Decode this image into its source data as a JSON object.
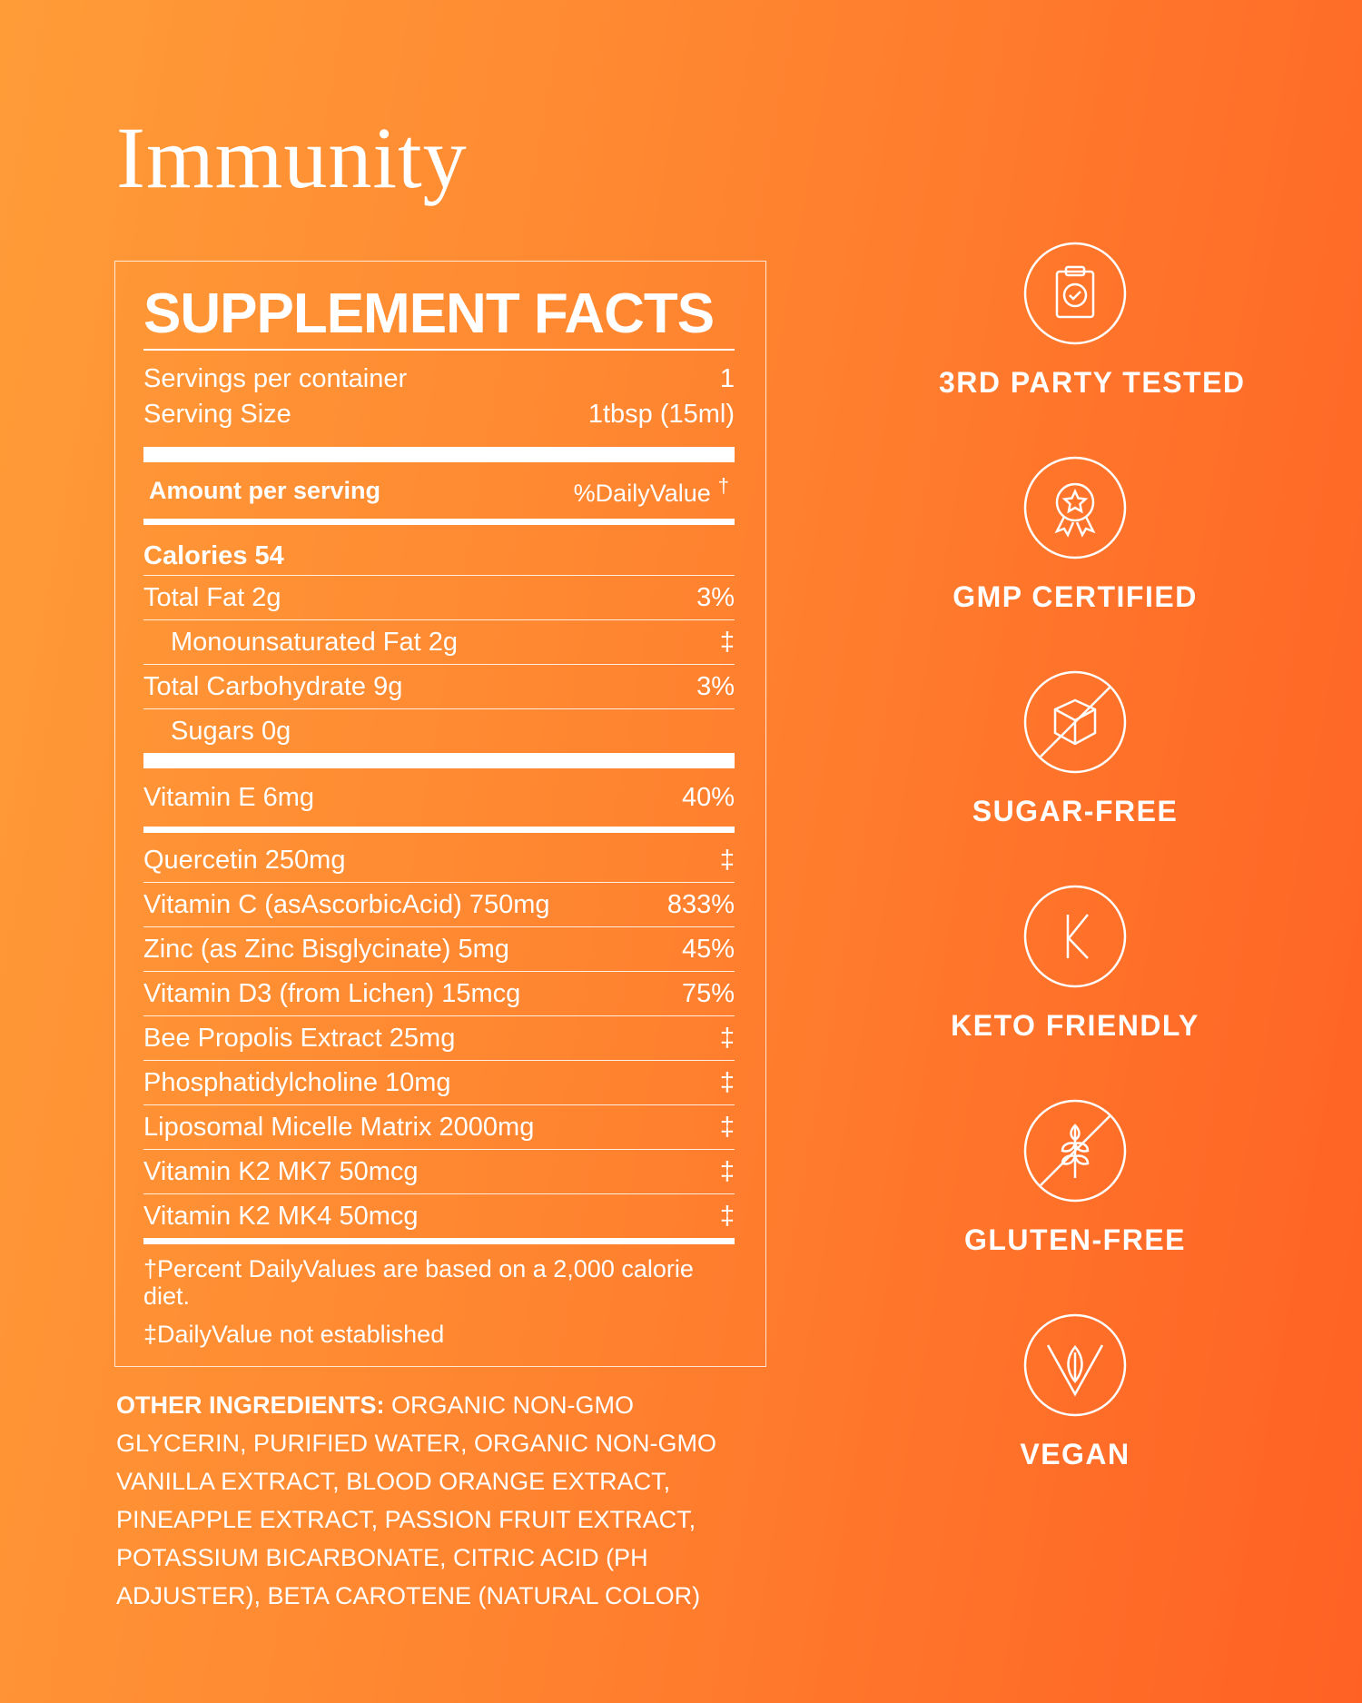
{
  "title": "Immunity",
  "facts": {
    "heading": "SUPPLEMENT FACTS",
    "servings": [
      {
        "label": "Servings per container",
        "value": "1"
      },
      {
        "label": "Serving Size",
        "value": "1tbsp (15ml)"
      }
    ],
    "amount_header": {
      "label": "Amount per serving",
      "value": "%DailyValue",
      "mark": "†"
    },
    "calories": "Calories 54",
    "nutrients": [
      {
        "label": "Total Fat 2g",
        "dv": "3%"
      },
      {
        "label": "Monounsaturated Fat 2g",
        "dv": "‡",
        "indent": true
      },
      {
        "label": "Total Carbohydrate 9g",
        "dv": "3%"
      },
      {
        "label": "Sugars 0g",
        "indent": true
      }
    ],
    "vitamins": [
      {
        "label": "Vitamin E 6mg",
        "dv": "40%"
      }
    ],
    "ingredients": [
      {
        "label": "Quercetin 250mg",
        "dv": "‡"
      },
      {
        "label": "Vitamin C (asAscorbicAcid) 750mg",
        "dv": "833%"
      },
      {
        "label": "Zinc (as Zinc Bisglycinate) 5mg",
        "dv": "45%"
      },
      {
        "label": "Vitamin D3 (from Lichen) 15mcg",
        "dv": "75%"
      },
      {
        "label": "Bee Propolis Extract 25mg",
        "dv": "‡"
      },
      {
        "label": "Phosphatidylcholine 10mg",
        "dv": "‡"
      },
      {
        "label": "Liposomal Micelle Matrix 2000mg",
        "dv": "‡"
      },
      {
        "label": "Vitamin K2 MK7 50mcg",
        "dv": "‡"
      },
      {
        "label": "Vitamin K2 MK4 50mcg",
        "dv": "‡"
      }
    ],
    "footnotes": [
      "†Percent DailyValues are based on a 2,000 calorie diet.",
      "‡DailyValue not established"
    ]
  },
  "other_ingredients": {
    "label": "OTHER INGREDIENTS:",
    "text": "ORGANIC NON-GMO GLYCERIN, PURIFIED WATER, ORGANIC NON-GMO VANILLA EXTRACT, BLOOD ORANGE EXTRACT, PINEAPPLE EXTRACT, PASSION FRUIT EXTRACT, POTASSIUM BICARBONATE, CITRIC ACID (PH ADJUSTER), BETA CAROTENE (NATURAL COLOR)"
  },
  "badges": [
    "3RD PARTY TESTED",
    "GMP CERTIFIED",
    "SUGAR-FREE",
    "KETO FRIENDLY",
    "GLUTEN-FREE",
    "VEGAN"
  ]
}
